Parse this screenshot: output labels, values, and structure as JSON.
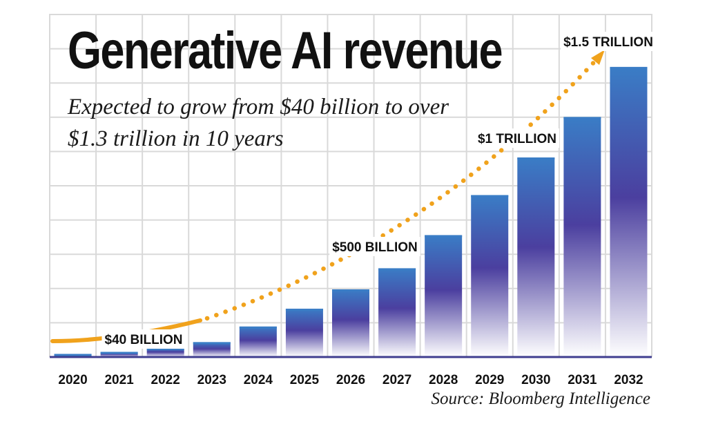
{
  "chart_data": {
    "type": "bar",
    "title": "Generative AI revenue",
    "subtitle": "Expected to grow from $40 billion to over $1.3 trillion in 10 years",
    "source": "Source: Bloomberg Intelligence",
    "categories": [
      "2020",
      "2021",
      "2022",
      "2023",
      "2024",
      "2025",
      "2026",
      "2027",
      "2028",
      "2029",
      "2030",
      "2031",
      "2032"
    ],
    "values": [
      14,
      23,
      40,
      67,
      137,
      217,
      304,
      399,
      548,
      728,
      897,
      1079,
      1304
    ],
    "unit": "billion USD",
    "ylim": [
      0,
      1500
    ],
    "grid": true,
    "annotations": [
      {
        "text": "$40 BILLION",
        "category": "2021"
      },
      {
        "text": "$500 BILLION",
        "category": "2026"
      },
      {
        "text": "$1 TRILLION",
        "category": "2030"
      },
      {
        "text": "$1.5 TRILLION",
        "category": "2032"
      }
    ],
    "trend_arrow": true,
    "colors": {
      "bar_top": "#3a7dc6",
      "bar_mid": "#4b3f9f",
      "bar_bottom": "#ffffff",
      "trend": "#f0a21c",
      "grid": "#d9d9d9",
      "baseline": "#3f3d8f"
    }
  }
}
